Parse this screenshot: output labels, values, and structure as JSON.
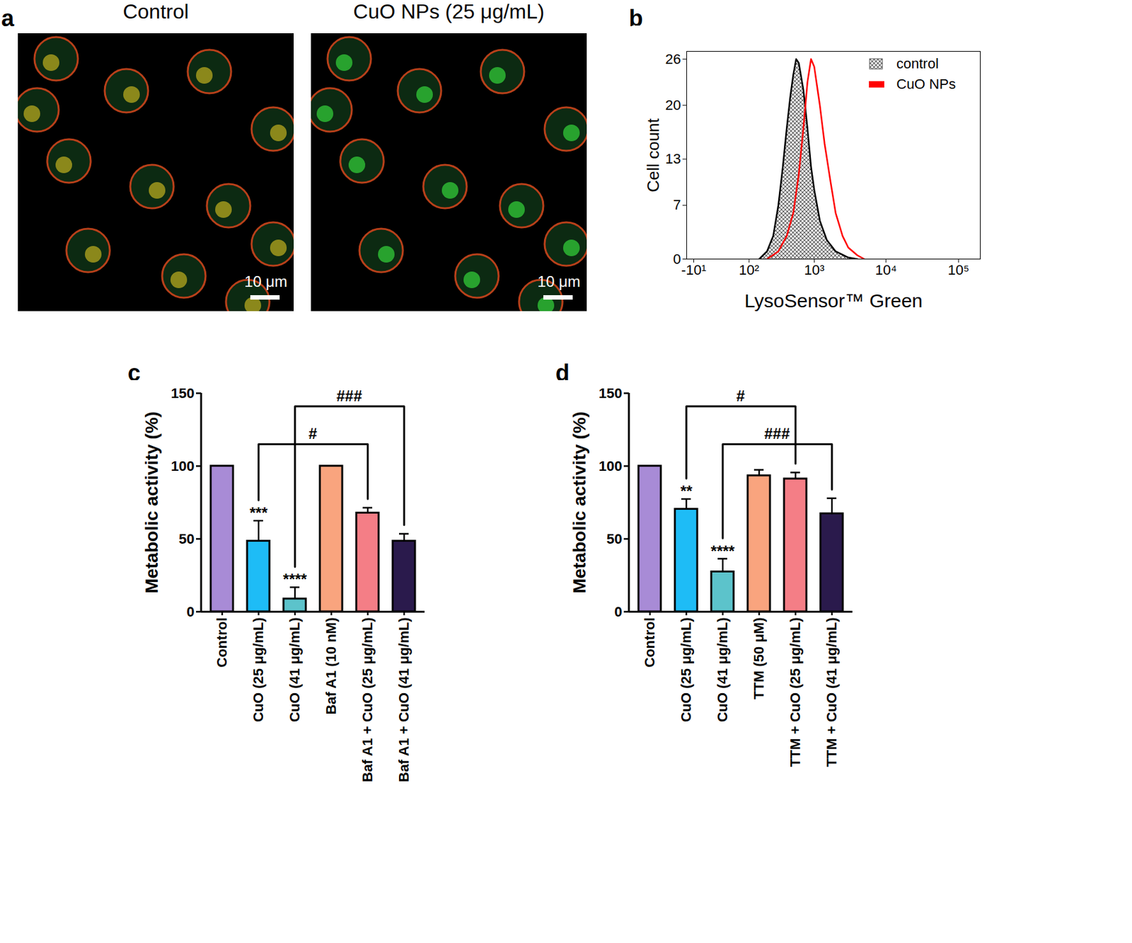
{
  "chart_data": [
    {
      "panel": "a",
      "type": "image",
      "images": [
        {
          "title": "Control",
          "scale_bar": "10 μm"
        },
        {
          "title": "CuO NPs (25 μg/mL)",
          "scale_bar": "10 μm"
        }
      ]
    },
    {
      "panel": "b",
      "type": "line",
      "x_label": "LysoSensor™ Green",
      "y_label": "Cell count",
      "log": "x",
      "xlim": [
        -20,
        200000
      ],
      "xticks": [
        {
          "value": -10,
          "label": "-10¹"
        },
        {
          "value": 100,
          "label": "10²"
        },
        {
          "value": 1000,
          "label": "10³"
        },
        {
          "value": 10000,
          "label": "10⁴"
        },
        {
          "value": 100000,
          "label": "10⁵"
        }
      ],
      "ylim": [
        0,
        27
      ],
      "yticks": [
        0,
        7,
        13,
        20,
        26
      ],
      "legend": "upper right",
      "series": [
        {
          "name": "control",
          "color": "#000000",
          "x": [
            150,
            200,
            250,
            300,
            350,
            400,
            450,
            500,
            550,
            600,
            700,
            800,
            900,
            1000,
            1200,
            1500,
            2000,
            3000,
            4000
          ],
          "values": [
            0,
            1,
            3,
            7,
            12,
            17,
            21,
            24,
            26,
            25.5,
            22,
            17,
            12,
            9,
            5,
            2.5,
            1,
            0.2,
            0
          ]
        },
        {
          "name": "CuO NPs",
          "color": "#ff0000",
          "x": [
            200,
            300,
            400,
            500,
            600,
            700,
            800,
            900,
            1000,
            1200,
            1400,
            1700,
            2000,
            2500,
            3000,
            4000,
            5000
          ],
          "values": [
            0,
            1,
            3,
            6,
            11,
            17,
            23,
            26,
            25,
            20,
            15,
            10,
            6,
            3,
            1.5,
            0.5,
            0
          ]
        }
      ]
    },
    {
      "panel": "c",
      "type": "bar",
      "y_label": "Metabolic activity (%)",
      "categories": [
        "Control",
        "CuO (25 μg/mL)",
        "CuO (41 μg/mL)",
        "Baf A1 (10 nM)",
        "Baf A1 + CuO (25 μg/mL)",
        "Baf A1 + CuO (41 μg/mL)"
      ],
      "values": [
        100,
        48.5,
        8.8,
        100,
        67.8,
        48.5
      ],
      "errors": [
        0,
        14,
        8,
        0,
        3.6,
        5
      ],
      "colors": [
        "#a88bd6",
        "#1ebcf6",
        "#5cc3cb",
        "#f9a47e",
        "#f47e86",
        "#2a1a4c"
      ],
      "significance": [
        null,
        "***",
        "****",
        null,
        null,
        null
      ],
      "comparisons": [
        {
          "from": "CuO (25 μg/mL)",
          "to": "Baf A1 + CuO (25 μg/mL)",
          "label": "#"
        },
        {
          "from": "CuO (41 μg/mL)",
          "to": "Baf A1 + CuO (41 μg/mL)",
          "label": "###"
        }
      ],
      "ylim": [
        0,
        150
      ],
      "yticks": [
        0,
        50,
        100,
        150
      ]
    },
    {
      "panel": "d",
      "type": "bar",
      "y_label": "Metabolic activity (%)",
      "categories": [
        "Control",
        "CuO (25 μg/mL)",
        "CuO (41 μg/mL)",
        "TTM (50 μM)",
        "TTM + CuO (25 μg/mL)",
        "TTM + CuO (41 μg/mL)"
      ],
      "values": [
        100,
        70.4,
        27.4,
        93.4,
        91.2,
        67.3
      ],
      "errors": [
        0,
        7,
        9,
        4,
        4.4,
        10.6
      ],
      "colors": [
        "#a88bd6",
        "#1ebcf6",
        "#5cc3cb",
        "#f9a47e",
        "#f47e86",
        "#2a1a4c"
      ],
      "significance": [
        null,
        "**",
        "****",
        null,
        null,
        null
      ],
      "comparisons": [
        {
          "from": "CuO (41 μg/mL)",
          "to": "TTM + CuO (41 μg/mL)",
          "label": "###"
        },
        {
          "from": "CuO (25 μg/mL)",
          "to": "TTM + CuO (25 μg/mL)",
          "label": "#"
        }
      ],
      "ylim": [
        0,
        150
      ],
      "yticks": [
        0,
        50,
        100,
        150
      ]
    }
  ]
}
